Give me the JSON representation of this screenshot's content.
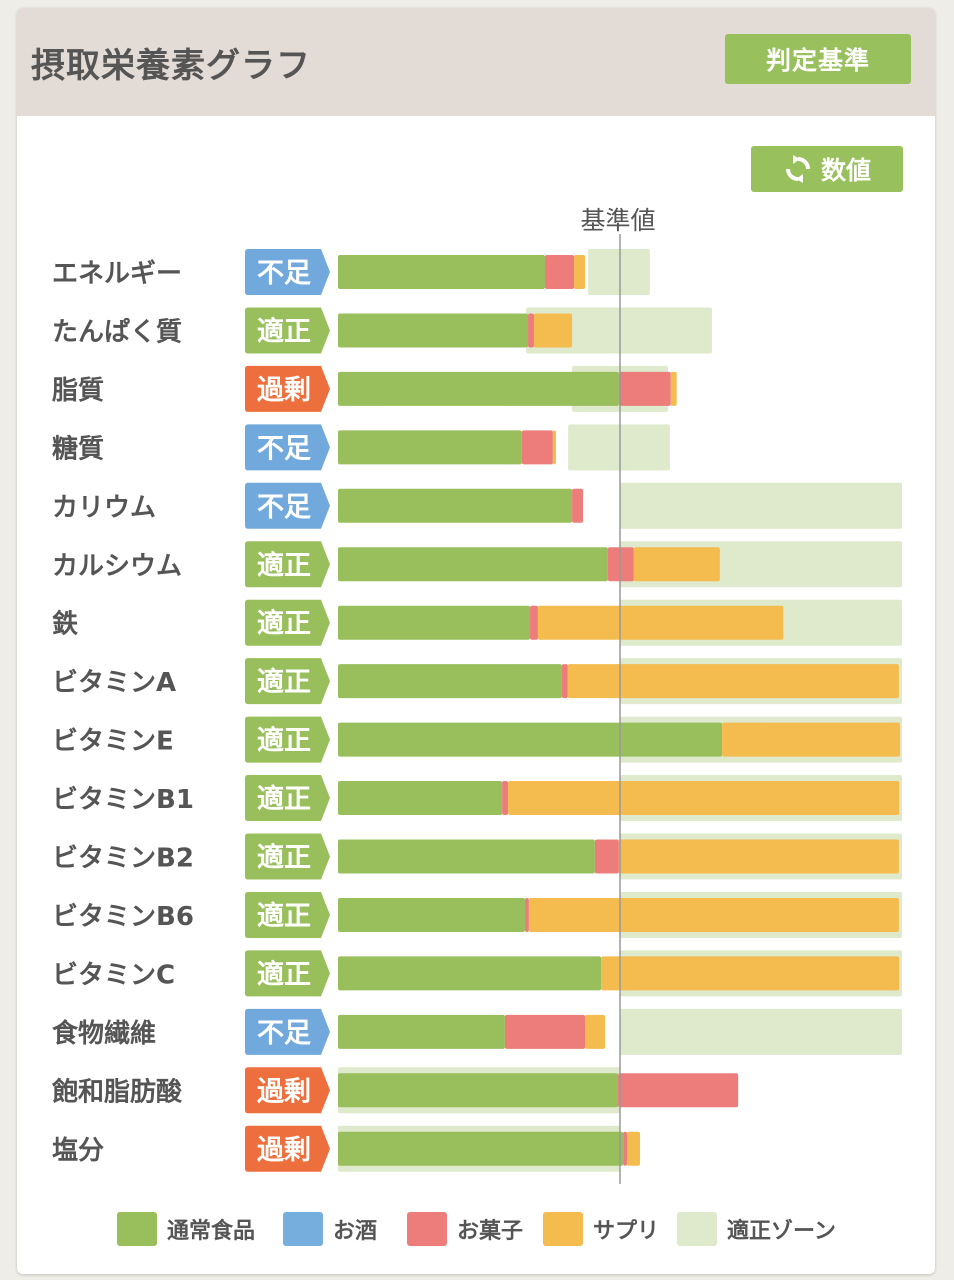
{
  "header": {
    "title": "摂取栄養素グラフ",
    "criteria_button": "判定基準"
  },
  "toolbar": {
    "value_button": "数値",
    "value_icon": "refresh-icon"
  },
  "colors": {
    "normal": "#98bf5c",
    "alcohol": "#76aedd",
    "snack": "#ec7d7a",
    "supplement": "#f4bb4f",
    "zone": "#dfe9cc",
    "status_short": "#72a9dc",
    "status_ok": "#98bf5c",
    "status_over": "#ec6f3d"
  },
  "chart_data": {
    "type": "bar",
    "orientation": "horizontal",
    "stacked": true,
    "unit": "percent_of_reference",
    "reference_label": "基準値",
    "reference_value": 100,
    "xlim": [
      0,
      200
    ],
    "legend": [
      {
        "key": "normal",
        "label": "通常食品"
      },
      {
        "key": "alcohol",
        "label": "お酒"
      },
      {
        "key": "snack",
        "label": "お菓子"
      },
      {
        "key": "supplement",
        "label": "サプリ"
      },
      {
        "key": "zone",
        "label": "適正ゾーン"
      }
    ],
    "status_labels": {
      "short": "不足",
      "ok": "適正",
      "over": "過剰"
    },
    "categories": [
      "エネルギー",
      "たんぱく質",
      "脂質",
      "糖質",
      "カリウム",
      "カルシウム",
      "鉄",
      "ビタミンA",
      "ビタミンE",
      "ビタミンB1",
      "ビタミンB2",
      "ビタミンB6",
      "ビタミンC",
      "食物繊維",
      "飽和脂肪酸",
      "塩分"
    ],
    "status": [
      "short",
      "ok",
      "over",
      "short",
      "short",
      "ok",
      "ok",
      "ok",
      "ok",
      "ok",
      "ok",
      "ok",
      "ok",
      "short",
      "over",
      "over"
    ],
    "series": [
      {
        "name": "通常食品",
        "key": "normal",
        "values": [
          73.4,
          67.4,
          99.6,
          65.2,
          83.0,
          95.7,
          68.1,
          79.4,
          136.2,
          58.2,
          91.1,
          66.3,
          93.3,
          59.2,
          99.3,
          101.1
        ]
      },
      {
        "name": "お酒",
        "key": "alcohol",
        "values": [
          0,
          0,
          0,
          0,
          0,
          0,
          0,
          0,
          0,
          0,
          0,
          0,
          0,
          0,
          0,
          0
        ]
      },
      {
        "name": "お菓子",
        "key": "snack",
        "values": [
          10.3,
          2.1,
          18.4,
          11.0,
          3.9,
          9.2,
          2.8,
          2.1,
          0,
          2.1,
          8.5,
          1.4,
          0,
          28.4,
          42.6,
          1.4
        ]
      },
      {
        "name": "サプリ",
        "key": "supplement",
        "values": [
          3.9,
          13.5,
          2.1,
          1.1,
          0,
          30.5,
          87.0,
          117.4,
          63.1,
          138.7,
          99.3,
          131.2,
          105.7,
          7.1,
          0,
          4.6
        ]
      }
    ],
    "zones": [
      [
        88.7,
        110.6
      ],
      [
        66.7,
        132.6
      ],
      [
        83.0,
        117.0
      ],
      [
        81.6,
        117.7
      ],
      [
        100,
        200
      ],
      [
        100,
        200
      ],
      [
        100,
        200
      ],
      [
        100,
        200
      ],
      [
        100,
        200
      ],
      [
        100,
        200
      ],
      [
        100,
        200
      ],
      [
        100,
        200
      ],
      [
        100,
        200
      ],
      [
        100,
        200
      ],
      [
        0,
        100
      ],
      [
        0,
        100
      ]
    ]
  }
}
